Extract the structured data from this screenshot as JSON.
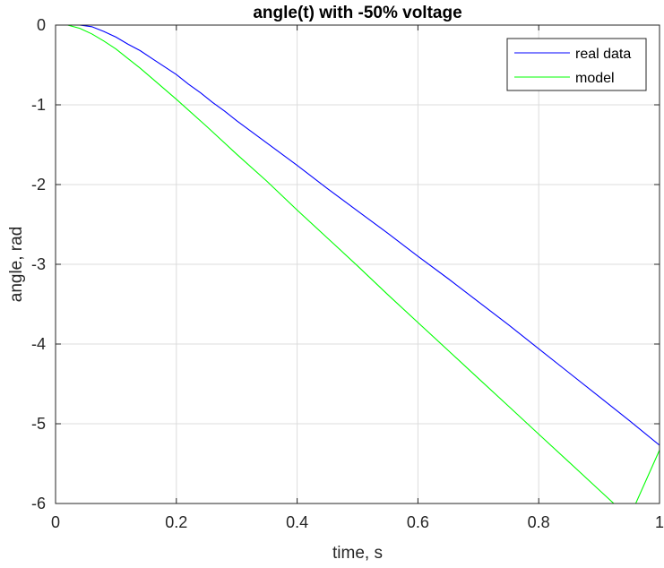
{
  "chart_data": {
    "type": "line",
    "title": "angle(t) with -50% voltage",
    "xlabel": "time, s",
    "ylabel": "angle, rad",
    "xlim": [
      0,
      1
    ],
    "ylim": [
      -6,
      0
    ],
    "xticks": [
      0,
      0.2,
      0.4,
      0.6,
      0.8,
      1
    ],
    "xtick_labels": [
      "0",
      "0.2",
      "0.4",
      "0.6",
      "0.8",
      "1"
    ],
    "yticks": [
      -6,
      -5,
      -4,
      -3,
      -2,
      -1,
      0
    ],
    "ytick_labels": [
      "-6",
      "-5",
      "-4",
      "-3",
      "-2",
      "-1",
      "0"
    ],
    "grid": true,
    "legend_position": "top-right",
    "series": [
      {
        "name": "real data",
        "color": "#0000ff",
        "x": [
          0,
          0.02,
          0.04,
          0.06,
          0.08,
          0.1,
          0.12,
          0.14,
          0.16,
          0.18,
          0.2,
          0.22,
          0.24,
          0.26,
          0.28,
          0.3,
          0.35,
          0.4,
          0.45,
          0.5,
          0.55,
          0.6,
          0.65,
          0.7,
          0.75,
          0.8,
          0.85,
          0.9,
          0.95,
          1.0
        ],
        "y": [
          0,
          0,
          0,
          -0.02,
          -0.08,
          -0.15,
          -0.24,
          -0.32,
          -0.42,
          -0.52,
          -0.62,
          -0.74,
          -0.85,
          -0.97,
          -1.08,
          -1.2,
          -1.48,
          -1.76,
          -2.05,
          -2.33,
          -2.61,
          -2.9,
          -3.18,
          -3.47,
          -3.76,
          -4.06,
          -4.36,
          -4.66,
          -4.96,
          -5.27
        ]
      },
      {
        "name": "model",
        "color": "#00ff00",
        "x": [
          0,
          0.02,
          0.04,
          0.06,
          0.08,
          0.1,
          0.12,
          0.14,
          0.16,
          0.18,
          0.2,
          0.25,
          0.3,
          0.35,
          0.4,
          0.45,
          0.5,
          0.55,
          0.6,
          0.65,
          0.7,
          0.75,
          0.8,
          0.85,
          0.9,
          0.95,
          1.0
        ],
        "y": [
          0,
          0,
          -0.04,
          -0.11,
          -0.2,
          -0.3,
          -0.42,
          -0.54,
          -0.67,
          -0.8,
          -0.93,
          -1.27,
          -1.62,
          -1.96,
          -2.32,
          -2.67,
          -3.02,
          -3.38,
          -3.73,
          -4.08,
          -4.43,
          -4.78,
          -5.13,
          -5.48,
          -5.83,
          -6.18,
          -5.33
        ]
      }
    ]
  }
}
